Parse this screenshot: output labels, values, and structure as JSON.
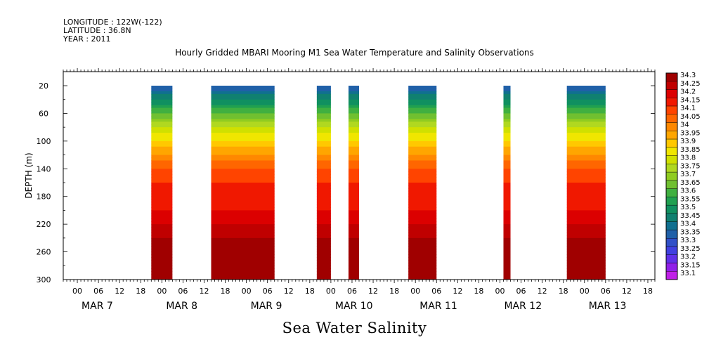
{
  "meta": {
    "longitude": "LONGITUDE : 122W(-122)",
    "latitude": "LATITUDE : 36.8N",
    "year": "YEAR : 2011"
  },
  "chart_data": {
    "type": "heatmap",
    "title": "Hourly Gridded MBARI Mooring M1 Sea Water Temperature and Salinity Observations",
    "xlabel": "Sea Water Salinity",
    "ylabel": "DEPTH (m)",
    "y_range": [
      300,
      20
    ],
    "y_ticks": [
      20,
      60,
      100,
      140,
      180,
      220,
      260,
      300
    ],
    "y_inverted": true,
    "x_hour_ticks": [
      "00",
      "06",
      "12",
      "18",
      "00",
      "06",
      "12",
      "18",
      "00",
      "06",
      "12",
      "18",
      "00",
      "06",
      "12",
      "18",
      "00",
      "06",
      "12",
      "18",
      "00",
      "06",
      "12",
      "18",
      "00",
      "06",
      "12",
      "18"
    ],
    "x_day_labels": [
      "MAR  7",
      "MAR  8",
      "MAR  9",
      "MAR 10",
      "MAR 11",
      "MAR 12",
      "MAR 13"
    ],
    "x_hours_range": [
      -4,
      164
    ],
    "data_segments": [
      {
        "start_hour": 21,
        "end_hour": 27,
        "surface_depth": 20
      },
      {
        "start_hour": 38,
        "end_hour": 56,
        "surface_depth": 20
      },
      {
        "start_hour": 68,
        "end_hour": 72,
        "surface_depth": 20
      },
      {
        "start_hour": 77,
        "end_hour": 80,
        "surface_depth": 20
      },
      {
        "start_hour": 94,
        "end_hour": 102,
        "surface_depth": 20
      },
      {
        "start_hour": 121,
        "end_hour": 123,
        "surface_depth": 20
      },
      {
        "start_hour": 139,
        "end_hour": 150,
        "surface_depth": 20
      }
    ],
    "salinity_profile": [
      {
        "depth": 20,
        "salinity": 33.3
      },
      {
        "depth": 40,
        "salinity": 33.45
      },
      {
        "depth": 60,
        "salinity": 33.6
      },
      {
        "depth": 80,
        "salinity": 33.75
      },
      {
        "depth": 100,
        "salinity": 33.85
      },
      {
        "depth": 120,
        "salinity": 33.95
      },
      {
        "depth": 140,
        "salinity": 34.05
      },
      {
        "depth": 160,
        "salinity": 34.1
      },
      {
        "depth": 200,
        "salinity": 34.15
      },
      {
        "depth": 220,
        "salinity": 34.2
      },
      {
        "depth": 240,
        "salinity": 34.25
      },
      {
        "depth": 300,
        "salinity": 34.25
      }
    ],
    "colorbar": {
      "levels": [
        "34.3",
        "34.25",
        "34.2",
        "34.15",
        "34.1",
        "34.05",
        "34",
        "33.95",
        "33.9",
        "33.85",
        "33.8",
        "33.75",
        "33.7",
        "33.65",
        "33.6",
        "33.55",
        "33.5",
        "33.45",
        "33.4",
        "33.35",
        "33.3",
        "33.25",
        "33.2",
        "33.15",
        "33.1"
      ],
      "colors": [
        "#a00000",
        "#c00000",
        "#dc0000",
        "#f01800",
        "#ff4400",
        "#ff6600",
        "#ff8800",
        "#ffa600",
        "#ffc800",
        "#f0e600",
        "#d0e000",
        "#b0d820",
        "#90cc20",
        "#70c030",
        "#40b040",
        "#20a050",
        "#109060",
        "#108070",
        "#107090",
        "#2060a8",
        "#3050c8",
        "#4040e0",
        "#6030e8",
        "#9020e8",
        "#c020e8"
      ]
    }
  }
}
